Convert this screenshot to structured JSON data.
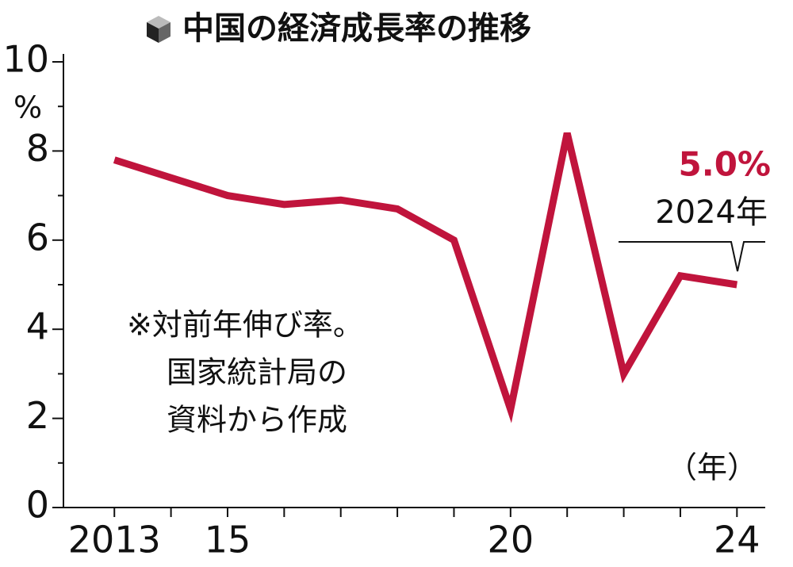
{
  "chart_data": {
    "type": "line",
    "title": "中国の経済成長率の推移",
    "y_label": "%",
    "x_label": "（年）",
    "note": [
      "※対前年伸び率。",
      "国家統計局の資料から作成",
      "資料から作成"
    ],
    "x": [
      2013,
      2014,
      2015,
      2016,
      2017,
      2018,
      2019,
      2020,
      2021,
      2022,
      2023,
      2024
    ],
    "series": [
      {
        "name": "経済成長率",
        "color": "#c0143c",
        "values": [
          7.8,
          7.4,
          7.0,
          6.8,
          6.9,
          6.7,
          6.0,
          2.2,
          8.4,
          3.0,
          5.2,
          5.0
        ],
        "value_labels": [
          null,
          null,
          null,
          null,
          null,
          null,
          null,
          null,
          null,
          null,
          null,
          "5.0%"
        ]
      }
    ],
    "annotation": "2024年",
    "xlim": [
      2012.1,
      2024.5
    ],
    "xticks": [
      2013,
      {
        "value": 2015,
        "label": "15"
      },
      {
        "value": 2020,
        "label": "20"
      },
      {
        "value": 2024,
        "label": "24"
      }
    ],
    "ylim": [
      0,
      10
    ],
    "yticks": [
      0,
      2,
      4,
      6,
      8,
      10
    ],
    "yminor_ticks": [
      1,
      3,
      5,
      7,
      9
    ]
  }
}
